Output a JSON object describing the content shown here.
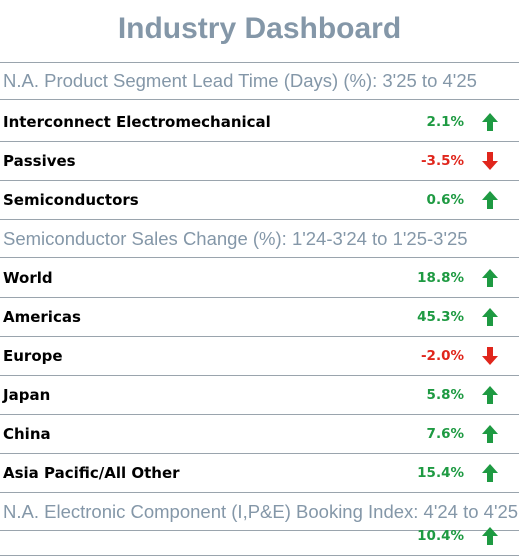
{
  "colors": {
    "title": "#8497a8",
    "positive": "#1e9a42",
    "negative": "#e0261c",
    "divider": "#9aa4ad"
  },
  "title": "Industry Dashboard",
  "sections": [
    {
      "heading": "N.A. Product Segment Lead Time (Days) (%): 3'25 to 4'25",
      "rows": [
        {
          "label": "Interconnect Electromechanical",
          "value": "2.1%",
          "direction": "up",
          "icon": "arrow-up-icon"
        },
        {
          "label": "Passives",
          "value": "-3.5%",
          "direction": "down",
          "icon": "arrow-down-icon"
        },
        {
          "label": "Semiconductors",
          "value": "0.6%",
          "direction": "up",
          "icon": "arrow-up-icon"
        }
      ]
    },
    {
      "heading": "Semiconductor Sales Change (%): 1'24-3'24 to 1'25-3'25",
      "rows": [
        {
          "label": "World",
          "value": "18.8%",
          "direction": "up",
          "icon": "arrow-up-icon"
        },
        {
          "label": "Americas",
          "value": "45.3%",
          "direction": "up",
          "icon": "arrow-up-icon"
        },
        {
          "label": "Europe",
          "value": "-2.0%",
          "direction": "down",
          "icon": "arrow-down-icon"
        },
        {
          "label": "Japan",
          "value": "5.8%",
          "direction": "up",
          "icon": "arrow-up-icon"
        },
        {
          "label": "China",
          "value": "7.6%",
          "direction": "up",
          "icon": "arrow-up-icon"
        },
        {
          "label": "Asia Pacific/All Other",
          "value": "15.4%",
          "direction": "up",
          "icon": "arrow-up-icon"
        }
      ]
    },
    {
      "heading": "N.A. Electronic Component (I,P&E) Booking Index: 4'24 to 4'25",
      "rows": [
        {
          "label": "",
          "value": "10.4%",
          "direction": "up",
          "icon": "arrow-up-icon"
        }
      ]
    }
  ]
}
